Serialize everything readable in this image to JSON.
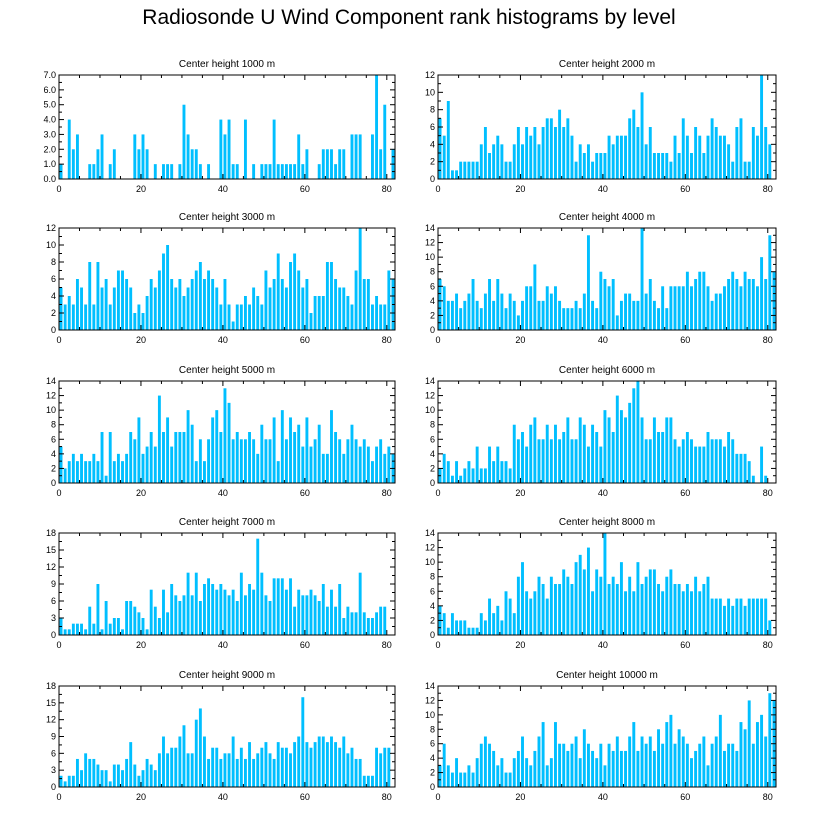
{
  "figure": {
    "title": "Radiosonde U Wind Component rank histograms by level",
    "bar_color": "#00BFFF",
    "axis_color": "#000000"
  },
  "chart_data": [
    {
      "type": "bar",
      "title": "Center height 1000 m",
      "xlabel": "",
      "ylabel": "",
      "xlim": [
        0,
        82
      ],
      "ylim": [
        0,
        7
      ],
      "yticks": [
        0,
        1,
        2,
        3,
        4,
        5,
        6,
        7
      ],
      "yticklabels": [
        "0.0",
        "1.0",
        "2.0",
        "3.0",
        "4.0",
        "5.0",
        "6.0",
        "7.0"
      ],
      "xticks": [
        0,
        20,
        40,
        60,
        80
      ],
      "x_start": 0,
      "values": [
        1,
        0,
        4,
        2,
        3,
        0,
        0,
        1,
        1,
        2,
        3,
        0,
        1,
        2,
        0,
        0,
        0,
        0,
        3,
        2,
        3,
        2,
        0,
        1,
        0,
        1,
        1,
        1,
        0,
        1,
        5,
        3,
        2,
        2,
        1,
        0,
        1,
        0,
        0,
        4,
        3,
        4,
        1,
        1,
        0,
        4,
        0,
        1,
        0,
        1,
        1,
        1,
        4,
        1,
        1,
        1,
        1,
        1,
        3,
        1,
        2,
        0,
        0,
        1,
        2,
        2,
        2,
        1,
        2,
        2,
        0,
        3,
        3,
        3,
        0,
        0,
        3,
        7,
        2,
        5,
        0,
        2,
        2
      ]
    },
    {
      "type": "bar",
      "title": "Center height 2000 m",
      "xlabel": "",
      "ylabel": "",
      "xlim": [
        0,
        82
      ],
      "ylim": [
        0,
        12
      ],
      "yticks": [
        0,
        2,
        4,
        6,
        8,
        10,
        12
      ],
      "yticklabels": [
        "0",
        "2",
        "4",
        "6",
        "8",
        "10",
        "12"
      ],
      "xticks": [
        0,
        20,
        40,
        60,
        80
      ],
      "x_start": 0,
      "values": [
        7,
        5,
        9,
        1,
        1,
        2,
        2,
        2,
        2,
        2,
        4,
        6,
        3,
        4,
        5,
        4,
        2,
        2,
        4,
        6,
        4,
        6,
        5,
        6,
        4,
        6,
        7,
        7,
        6,
        8,
        6,
        7,
        5,
        2,
        4,
        3,
        4,
        2,
        3,
        3,
        3,
        5,
        4,
        5,
        5,
        5,
        7,
        8,
        6,
        10,
        4,
        6,
        3,
        3,
        3,
        3,
        2,
        5,
        3,
        7,
        5,
        3,
        6,
        5,
        3,
        5,
        7,
        6,
        5,
        5,
        4,
        2,
        6,
        7,
        2,
        2,
        6,
        5,
        12,
        6,
        4
      ]
    },
    {
      "type": "bar",
      "title": "Center height 3000 m",
      "xlabel": "",
      "ylabel": "",
      "xlim": [
        0,
        82
      ],
      "ylim": [
        0,
        12
      ],
      "yticks": [
        0,
        2,
        4,
        6,
        8,
        10,
        12
      ],
      "yticklabels": [
        "0",
        "2",
        "4",
        "6",
        "8",
        "10",
        "12"
      ],
      "xticks": [
        0,
        20,
        40,
        60,
        80
      ],
      "x_start": 0,
      "values": [
        5,
        3,
        4,
        3,
        6,
        5,
        3,
        8,
        3,
        8,
        5,
        6,
        3,
        5,
        7,
        7,
        6,
        5,
        2,
        3,
        2,
        4,
        6,
        5,
        7,
        9,
        10,
        6,
        5,
        6,
        4,
        5,
        6,
        7,
        8,
        6,
        7,
        6,
        5,
        3,
        6,
        3,
        1,
        3,
        3,
        4,
        3,
        5,
        4,
        3,
        7,
        5,
        6,
        9,
        6,
        5,
        8,
        9,
        7,
        5,
        6,
        2,
        4,
        4,
        4,
        8,
        8,
        6,
        5,
        5,
        4,
        3,
        7,
        12,
        6,
        6,
        3,
        4,
        3,
        3,
        7,
        6,
        7
      ]
    },
    {
      "type": "bar",
      "title": "Center height 4000 m",
      "xlabel": "",
      "ylabel": "",
      "xlim": [
        0,
        82
      ],
      "ylim": [
        0,
        14
      ],
      "yticks": [
        0,
        2,
        4,
        6,
        8,
        10,
        12,
        14
      ],
      "yticklabels": [
        "0",
        "2",
        "4",
        "6",
        "8",
        "10",
        "12",
        "14"
      ],
      "xticks": [
        0,
        20,
        40,
        60,
        80
      ],
      "x_start": 0,
      "values": [
        7,
        6,
        4,
        4,
        5,
        3,
        4,
        5,
        7,
        4,
        3,
        5,
        7,
        4,
        7,
        5,
        3,
        5,
        4,
        2,
        4,
        6,
        6,
        9,
        4,
        4,
        6,
        5,
        6,
        4,
        3,
        3,
        3,
        4,
        3,
        5,
        13,
        4,
        3,
        8,
        7,
        6,
        7,
        2,
        4,
        5,
        5,
        4,
        4,
        14,
        5,
        7,
        4,
        3,
        6,
        3,
        6,
        6,
        6,
        6,
        8,
        6,
        7,
        8,
        8,
        6,
        4,
        5,
        5,
        6,
        7,
        8,
        7,
        6,
        8,
        7,
        7,
        6,
        10,
        7,
        13,
        8
      ]
    },
    {
      "type": "bar",
      "title": "Center height 5000 m",
      "xlabel": "",
      "ylabel": "",
      "xlim": [
        0,
        82
      ],
      "ylim": [
        0,
        14
      ],
      "yticks": [
        0,
        2,
        4,
        6,
        8,
        10,
        12,
        14
      ],
      "yticklabels": [
        "0",
        "2",
        "4",
        "6",
        "8",
        "10",
        "12",
        "14"
      ],
      "xticks": [
        0,
        20,
        40,
        60,
        80
      ],
      "x_start": 0,
      "values": [
        5,
        2,
        3,
        4,
        3,
        4,
        3,
        3,
        4,
        3,
        7,
        1,
        7,
        3,
        4,
        3,
        4,
        7,
        6,
        9,
        4,
        5,
        7,
        5,
        12,
        7,
        9,
        5,
        7,
        7,
        7,
        10,
        8,
        3,
        6,
        3,
        6,
        9,
        10,
        7,
        13,
        11,
        6,
        7,
        6,
        6,
        7,
        6,
        4,
        8,
        6,
        6,
        9,
        3,
        10,
        6,
        9,
        7,
        8,
        5,
        9,
        5,
        6,
        8,
        4,
        4,
        10,
        7,
        6,
        4,
        6,
        8,
        6,
        5,
        6,
        5,
        3,
        5,
        6,
        4,
        5,
        4,
        8
      ]
    },
    {
      "type": "bar",
      "title": "Center height 6000 m",
      "xlabel": "",
      "ylabel": "",
      "xlim": [
        0,
        82
      ],
      "ylim": [
        0,
        14
      ],
      "yticks": [
        0,
        2,
        4,
        6,
        8,
        10,
        12,
        14
      ],
      "yticklabels": [
        "0",
        "2",
        "4",
        "6",
        "8",
        "10",
        "12",
        "14"
      ],
      "xticks": [
        0,
        20,
        40,
        60,
        80
      ],
      "x_start": 0,
      "values": [
        2,
        4,
        3,
        1,
        3,
        1,
        2,
        3,
        2,
        5,
        2,
        2,
        5,
        3,
        5,
        3,
        3,
        2,
        8,
        6,
        7,
        5,
        8,
        9,
        6,
        6,
        8,
        6,
        8,
        6,
        7,
        9,
        6,
        6,
        9,
        8,
        5,
        8,
        7,
        5,
        10,
        9,
        7,
        12,
        10,
        9,
        11,
        13,
        14,
        9,
        6,
        6,
        9,
        7,
        7,
        9,
        9,
        6,
        5,
        6,
        7,
        6,
        5,
        5,
        5,
        7,
        6,
        6,
        6,
        5,
        7,
        6,
        4,
        4,
        4,
        3,
        1,
        0,
        5,
        1,
        0
      ]
    },
    {
      "type": "bar",
      "title": "Center height 7000 m",
      "xlabel": "",
      "ylabel": "",
      "xlim": [
        0,
        82
      ],
      "ylim": [
        0,
        18
      ],
      "yticks": [
        0,
        3,
        6,
        9,
        12,
        15,
        18
      ],
      "yticklabels": [
        "0",
        "3",
        "6",
        "9",
        "12",
        "15",
        "18"
      ],
      "xticks": [
        0,
        20,
        40,
        60,
        80
      ],
      "x_start": 0,
      "values": [
        3,
        1,
        1,
        2,
        2,
        2,
        1,
        5,
        2,
        9,
        1,
        6,
        2,
        3,
        3,
        1,
        6,
        6,
        5,
        4,
        3,
        1,
        8,
        5,
        3,
        8,
        4,
        9,
        7,
        6,
        7,
        11,
        7,
        11,
        6,
        9,
        10,
        9,
        8,
        9,
        8,
        7,
        8,
        6,
        11,
        7,
        9,
        8,
        17,
        11,
        7,
        6,
        10,
        10,
        10,
        8,
        10,
        5,
        8,
        7,
        7,
        8,
        7,
        6,
        9,
        5,
        8,
        5,
        9,
        3,
        5,
        4,
        4,
        11,
        4,
        3,
        3,
        4,
        5,
        5
      ]
    },
    {
      "type": "bar",
      "title": "Center height 8000 m",
      "xlabel": "",
      "ylabel": "",
      "xlim": [
        0,
        82
      ],
      "ylim": [
        0,
        14
      ],
      "yticks": [
        0,
        2,
        4,
        6,
        8,
        10,
        12,
        14
      ],
      "yticklabels": [
        "0",
        "2",
        "4",
        "6",
        "8",
        "10",
        "12",
        "14"
      ],
      "xticks": [
        0,
        20,
        40,
        60,
        80
      ],
      "x_start": 0,
      "values": [
        4,
        3,
        1,
        3,
        2,
        2,
        2,
        1,
        1,
        1,
        3,
        2,
        5,
        3,
        4,
        2,
        6,
        5,
        3,
        8,
        10,
        6,
        5,
        6,
        8,
        7,
        5,
        8,
        7,
        7,
        9,
        8,
        7,
        10,
        11,
        9,
        12,
        6,
        9,
        8,
        14,
        7,
        8,
        7,
        10,
        6,
        8,
        6,
        10,
        7,
        8,
        9,
        9,
        7,
        6,
        8,
        9,
        7,
        7,
        6,
        7,
        6,
        8,
        6,
        7,
        8,
        5,
        5,
        5,
        4,
        5,
        4,
        5,
        5,
        4,
        5,
        5,
        5,
        5,
        5,
        2
      ]
    },
    {
      "type": "bar",
      "title": "Center height 9000 m",
      "xlabel": "",
      "ylabel": "",
      "xlim": [
        0,
        82
      ],
      "ylim": [
        0,
        18
      ],
      "yticks": [
        0,
        3,
        6,
        9,
        12,
        15,
        18
      ],
      "yticklabels": [
        "0",
        "3",
        "6",
        "9",
        "12",
        "15",
        "18"
      ],
      "xticks": [
        0,
        20,
        40,
        60,
        80
      ],
      "x_start": 0,
      "values": [
        2,
        1,
        2,
        2,
        5,
        3,
        6,
        5,
        5,
        4,
        3,
        3,
        1,
        4,
        4,
        3,
        5,
        8,
        4,
        2,
        3,
        5,
        4,
        3,
        6,
        9,
        6,
        7,
        7,
        9,
        11,
        6,
        6,
        12,
        14,
        9,
        5,
        7,
        7,
        5,
        6,
        6,
        9,
        5,
        7,
        5,
        8,
        5,
        6,
        7,
        8,
        6,
        5,
        8,
        7,
        7,
        6,
        8,
        9,
        16,
        8,
        7,
        8,
        9,
        9,
        8,
        9,
        8,
        7,
        9,
        6,
        7,
        5,
        5,
        2,
        2,
        2,
        7,
        6,
        7,
        7
      ]
    },
    {
      "type": "bar",
      "title": "Center height 10000 m",
      "xlabel": "",
      "ylabel": "",
      "xlim": [
        0,
        82
      ],
      "ylim": [
        0,
        14
      ],
      "yticks": [
        0,
        2,
        4,
        6,
        8,
        10,
        12,
        14
      ],
      "yticklabels": [
        "0",
        "2",
        "4",
        "6",
        "8",
        "10",
        "12",
        "14"
      ],
      "xticks": [
        0,
        20,
        40,
        60,
        80
      ],
      "x_start": 0,
      "values": [
        3,
        6,
        3,
        2,
        4,
        2,
        2,
        3,
        2,
        4,
        6,
        7,
        6,
        5,
        3,
        4,
        2,
        2,
        4,
        5,
        7,
        4,
        3,
        5,
        7,
        9,
        3,
        4,
        9,
        6,
        6,
        5,
        6,
        7,
        4,
        8,
        6,
        5,
        4,
        6,
        3,
        6,
        5,
        7,
        5,
        5,
        7,
        9,
        5,
        7,
        6,
        7,
        5,
        8,
        6,
        9,
        10,
        6,
        8,
        7,
        6,
        4,
        5,
        6,
        7,
        3,
        6,
        7,
        10,
        5,
        6,
        6,
        5,
        9,
        8,
        12,
        6,
        9,
        10,
        7,
        13,
        12,
        11
      ]
    }
  ]
}
